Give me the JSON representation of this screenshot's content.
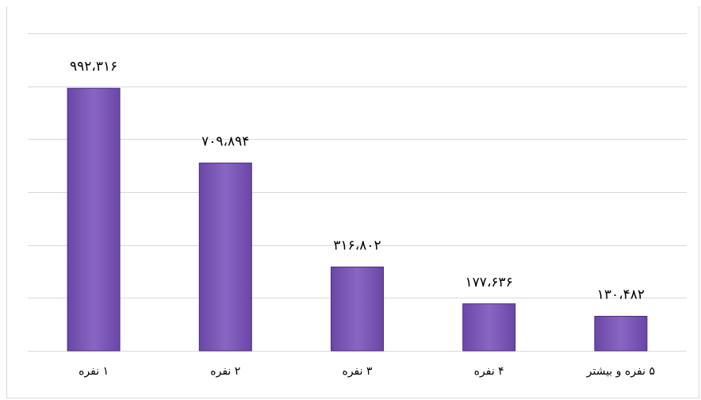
{
  "chart_data": {
    "type": "bar",
    "title": "",
    "xlabel": "",
    "ylabel": "",
    "categories": [
      "۱ نفره",
      "۲ نفره",
      "۳ نفره",
      "۴ نفره",
      "۵ نفره و بیشتر"
    ],
    "values": [
      992316,
      709894,
      316802,
      177636,
      130482
    ],
    "data_labels": [
      "۹۹۲،۳۱۶",
      "۷۰۹،۸۹۴",
      "۳۱۶،۸۰۲",
      "۱۷۷،۶۳۶",
      "۱۳۰،۴۸۲"
    ],
    "ylim": [
      0,
      1200000
    ],
    "y_grid_step": 200000,
    "grid": true,
    "y_tick_labels_visible": false,
    "legend": "none",
    "bar_color": "#7b56b5",
    "bar_border_color": "#4b2f7f"
  }
}
